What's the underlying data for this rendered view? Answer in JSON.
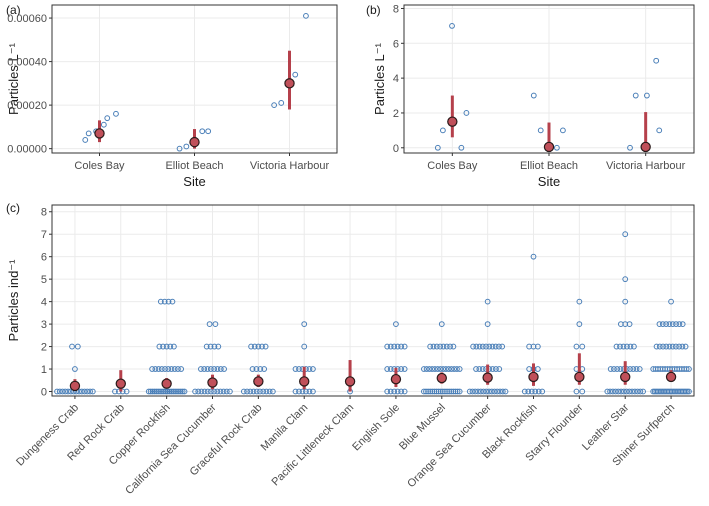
{
  "chart_data": [
    {
      "panel": "(a)",
      "type": "scatter",
      "xlabel": "Site",
      "ylabel": "Particles L⁻¹",
      "categories": [
        "Coles Bay",
        "Elliot Beach",
        "Victoria Harbour"
      ],
      "ylim": [
        -2e-05,
        0.00066
      ],
      "yticks": [
        0.0,
        0.0002,
        0.0004,
        0.0006
      ],
      "ytick_labels": [
        "0.00000",
        "0.00020",
        "0.00040",
        "0.00060"
      ],
      "points": [
        [
          4e-05,
          7e-05,
          8e-05,
          0.00011,
          0.00014,
          0.00016
        ],
        [
          0.0,
          1e-05,
          3e-05,
          8e-05,
          8e-05
        ],
        [
          0.0002,
          0.00021,
          0.0003,
          0.00034,
          0.00061
        ]
      ],
      "mean": [
        7e-05,
        3e-05,
        0.0003
      ],
      "ci": [
        [
          3e-05,
          0.00013
        ],
        [
          0.0,
          9e-05
        ],
        [
          0.00018,
          0.00045
        ]
      ]
    },
    {
      "panel": "(b)",
      "type": "scatter",
      "xlabel": "Site",
      "ylabel": "Particles L⁻¹",
      "categories": [
        "Coles Bay",
        "Elliot Beach",
        "Victoria Harbour"
      ],
      "ylim": [
        -0.3,
        8.2
      ],
      "yticks": [
        0,
        2,
        4,
        6,
        8
      ],
      "ytick_labels": [
        "0",
        "2",
        "4",
        "6",
        "8"
      ],
      "points": [
        [
          0,
          1,
          7,
          0,
          2
        ],
        [
          3,
          1,
          0,
          0,
          1
        ],
        [
          0,
          3,
          0,
          3,
          5,
          1
        ]
      ],
      "mean": [
        1.5,
        0.05,
        0.05
      ],
      "ci": [
        [
          0.6,
          3.0
        ],
        [
          0.0,
          1.45
        ],
        [
          0.0,
          2.05
        ]
      ]
    },
    {
      "panel": "(c)",
      "type": "scatter",
      "xlabel": "",
      "ylabel": "Particles ind⁻¹",
      "categories": [
        "Dungeness Crab",
        "Red Rock Crab",
        "Copper Rockfish",
        "California Sea Cucumber",
        "Graceful Rock Crab",
        "Manila Clam",
        "Pacific Littleneck Clam",
        "English Sole",
        "Blue Mussel",
        "Orange Sea Cucumber",
        "Black Rockfish",
        "Starry Flounder",
        "Leather Star",
        "Shiner Surfperch"
      ],
      "ylim": [
        -0.2,
        8.3
      ],
      "yticks": [
        0,
        1,
        2,
        3,
        4,
        5,
        6,
        7,
        8
      ],
      "ytick_labels": [
        "0",
        "1",
        "2",
        "3",
        "4",
        "5",
        "6",
        "7",
        "8"
      ],
      "counts": [
        {
          "0": 14,
          "1": 1,
          "2": 2
        },
        {
          "0": 4
        },
        {
          "0": 20,
          "1": 10,
          "2": 5,
          "4": 4
        },
        {
          "0": 12,
          "1": 8,
          "2": 4,
          "3": 2
        },
        {
          "0": 10,
          "1": 4,
          "2": 5
        },
        {
          "0": 6,
          "1": 6,
          "2": 1,
          "3": 1
        },
        {
          "0": 1
        },
        {
          "0": 6,
          "1": 6,
          "2": 6,
          "3": 1
        },
        {
          "0": 18,
          "1": 14,
          "2": 8,
          "3": 1
        },
        {
          "0": 14,
          "1": 8,
          "2": 10,
          "3": 1,
          "4": 1
        },
        {
          "0": 6,
          "1": 3,
          "2": 3,
          "6": 1
        },
        {
          "0": 2,
          "1": 2,
          "2": 2,
          "3": 1,
          "4": 1
        },
        {
          "0": 14,
          "1": 10,
          "2": 6,
          "3": 3,
          "4": 1,
          "5": 1,
          "7": 1
        },
        {
          "0": 24,
          "1": 16,
          "2": 10,
          "3": 8,
          "4": 1
        }
      ],
      "mean": [
        0.25,
        0.35,
        0.35,
        0.4,
        0.45,
        0.45,
        0.45,
        0.55,
        0.6,
        0.62,
        0.65,
        0.65,
        0.65,
        0.65
      ],
      "ci": [
        [
          0.05,
          0.55
        ],
        [
          0.0,
          0.95
        ],
        [
          0.15,
          0.6
        ],
        [
          0.1,
          0.75
        ],
        [
          0.2,
          0.75
        ],
        [
          0.1,
          1.1
        ],
        [
          0.0,
          1.4
        ],
        [
          0.2,
          1.05
        ],
        [
          0.35,
          0.85
        ],
        [
          0.3,
          1.2
        ],
        [
          0.25,
          1.25
        ],
        [
          0.3,
          1.7
        ],
        [
          0.3,
          1.35
        ],
        [
          0.45,
          0.95
        ]
      ]
    }
  ]
}
